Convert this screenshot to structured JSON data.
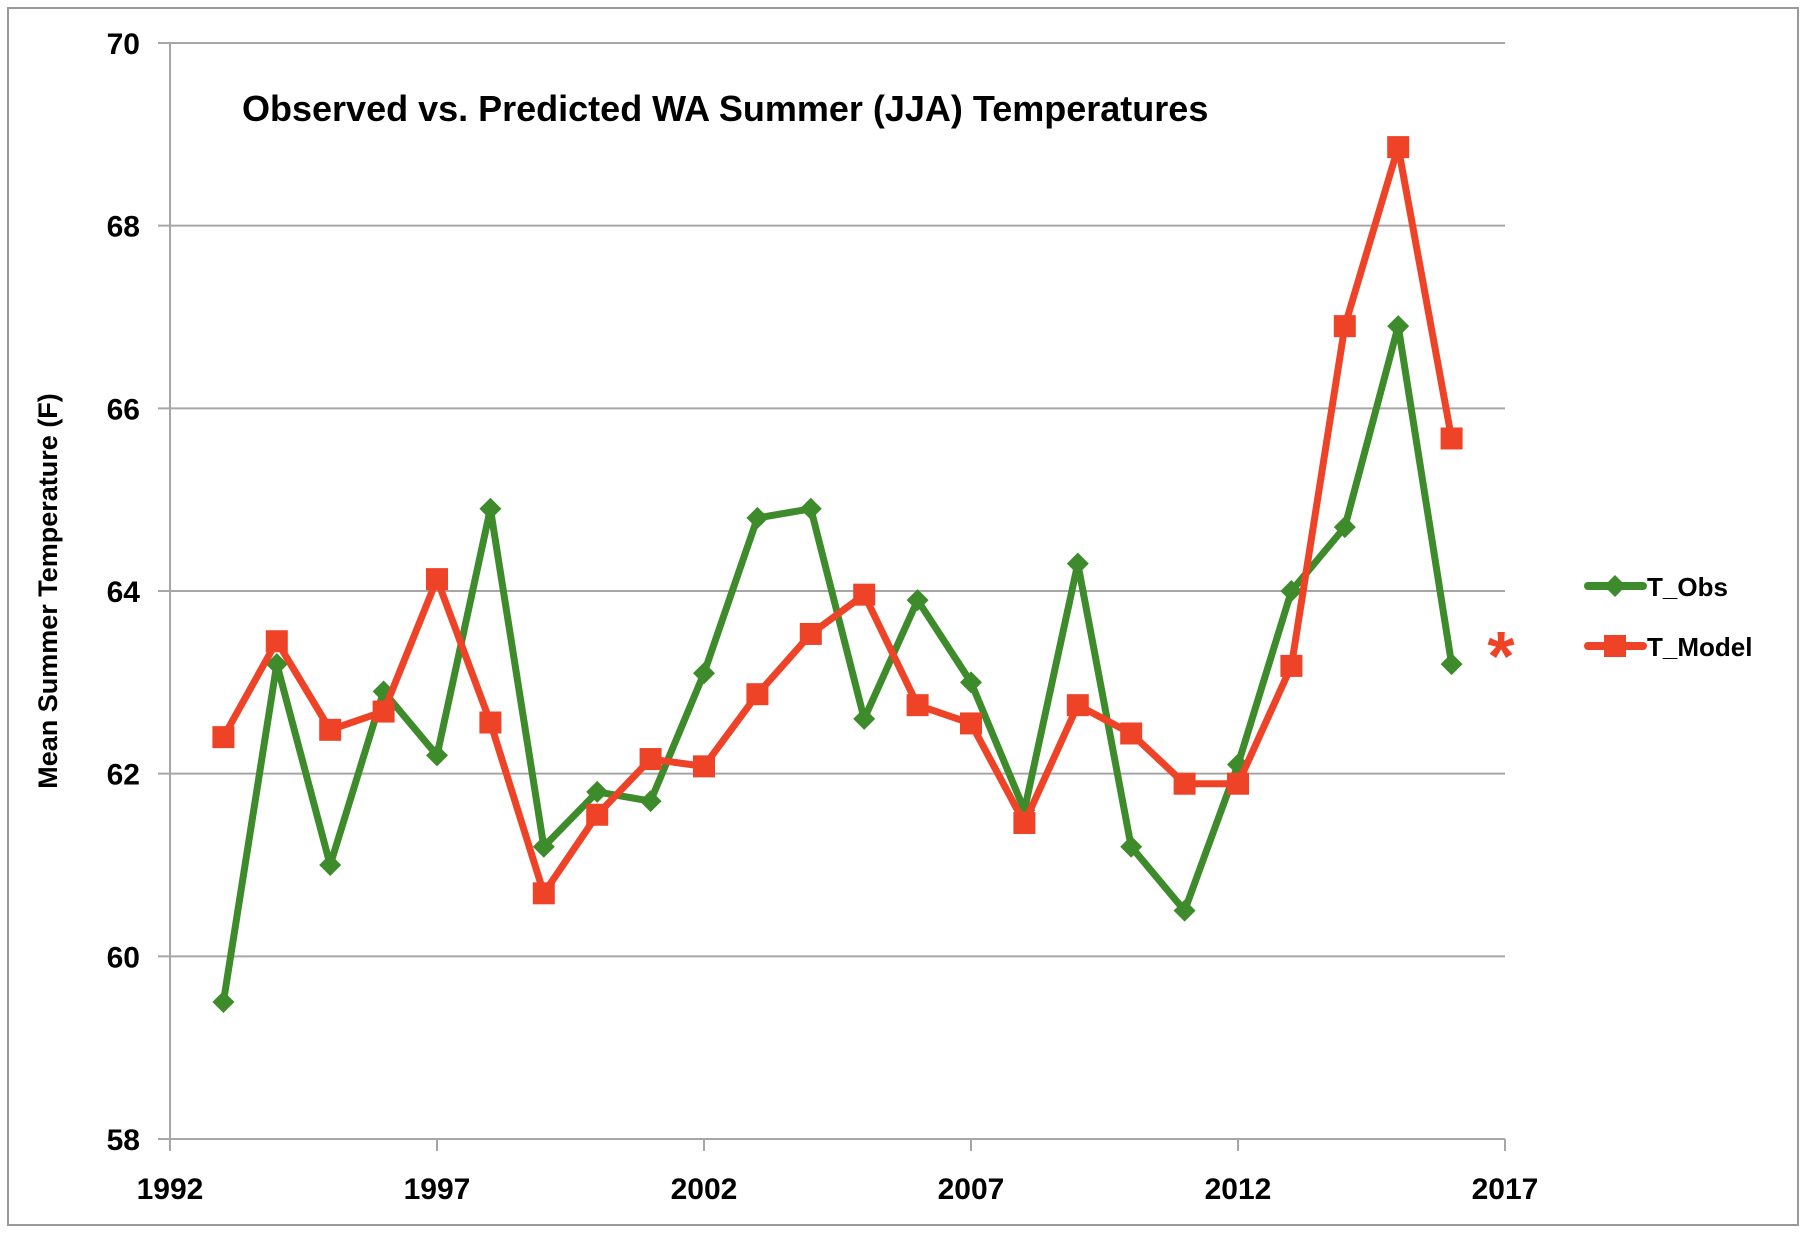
{
  "chart_data": {
    "type": "line",
    "title": "Observed vs. Predicted WA Summer (JJA) Temperatures",
    "xlabel": "",
    "ylabel": "Mean Summer Temperature (F)",
    "xlim": [
      1992,
      2017
    ],
    "ylim": [
      58,
      70
    ],
    "xticks": [
      1992,
      1997,
      2002,
      2007,
      2012,
      2017
    ],
    "yticks": [
      58,
      60,
      62,
      64,
      66,
      68,
      70
    ],
    "grid": "horizontal",
    "legend_position": "right",
    "x": [
      1993,
      1994,
      1995,
      1996,
      1997,
      1998,
      1999,
      2000,
      2001,
      2002,
      2003,
      2004,
      2005,
      2006,
      2007,
      2008,
      2009,
      2010,
      2011,
      2012,
      2013,
      2014,
      2015,
      2016
    ],
    "series": [
      {
        "name": "T_Obs",
        "color": "#3d8b2a",
        "marker": "diamond",
        "values": [
          59.5,
          63.2,
          61.0,
          62.9,
          62.2,
          64.9,
          61.2,
          61.8,
          61.7,
          63.1,
          64.8,
          64.9,
          62.6,
          63.9,
          63.0,
          61.6,
          64.3,
          61.2,
          60.5,
          62.1,
          64.0,
          64.7,
          66.9,
          63.2
        ]
      },
      {
        "name": "T_Model",
        "color": "#ee4327",
        "marker": "square",
        "values": [
          62.4,
          63.45,
          62.48,
          62.68,
          64.13,
          62.56,
          60.69,
          61.55,
          62.16,
          62.08,
          62.87,
          63.53,
          63.96,
          62.75,
          62.55,
          61.46,
          62.75,
          62.44,
          61.89,
          61.89,
          63.18,
          66.9,
          68.86,
          65.67
        ]
      }
    ],
    "annotations": [
      {
        "text": "*",
        "color": "#ee4327",
        "near": "T_Obs 2016 point"
      }
    ]
  }
}
